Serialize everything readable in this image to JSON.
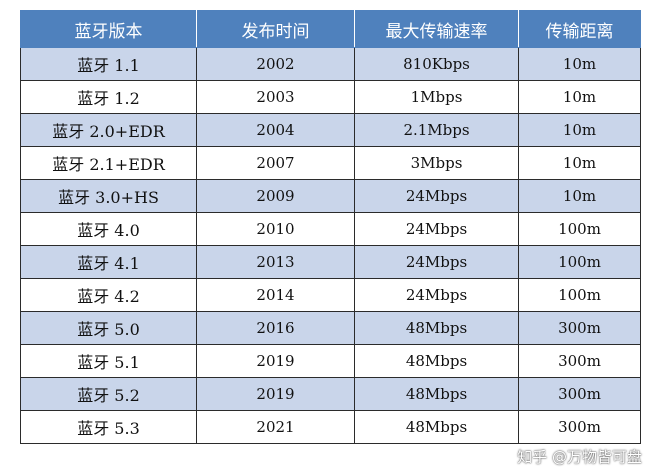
{
  "table": {
    "headers": [
      "蓝牙版本",
      "发布时间",
      "最大传输速率",
      "传输距离"
    ],
    "rows": [
      [
        "蓝牙 1.1",
        "2002",
        "810Kbps",
        "10m"
      ],
      [
        "蓝牙 1.2",
        "2003",
        "1Mbps",
        "10m"
      ],
      [
        "蓝牙 2.0+EDR",
        "2004",
        "2.1Mbps",
        "10m"
      ],
      [
        "蓝牙 2.1+EDR",
        "2007",
        "3Mbps",
        "10m"
      ],
      [
        "蓝牙 3.0+HS",
        "2009",
        "24Mbps",
        "10m"
      ],
      [
        "蓝牙 4.0",
        "2010",
        "24Mbps",
        "100m"
      ],
      [
        "蓝牙 4.1",
        "2013",
        "24Mbps",
        "100m"
      ],
      [
        "蓝牙 4.2",
        "2014",
        "24Mbps",
        "100m"
      ],
      [
        "蓝牙 5.0",
        "2016",
        "48Mbps",
        "300m"
      ],
      [
        "蓝牙 5.1",
        "2019",
        "48Mbps",
        "300m"
      ],
      [
        "蓝牙 5.2",
        "2019",
        "48Mbps",
        "300m"
      ],
      [
        "蓝牙 5.3",
        "2021",
        "48Mbps",
        "300m"
      ]
    ]
  },
  "watermark": "知乎 @万物皆可盘",
  "colors": {
    "header_bg": "#4f81bd",
    "odd_row_bg": "#c9d5ea",
    "even_row_bg": "#ffffff"
  }
}
